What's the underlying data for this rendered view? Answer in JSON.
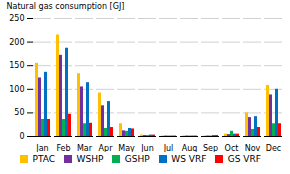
{
  "chart_data": {
    "type": "bar",
    "categories": [
      "Jan",
      "Feb",
      "Mar",
      "Apr",
      "May",
      "Jun",
      "Jul",
      "Aug",
      "Sep",
      "Oct",
      "Nov",
      "Dec"
    ],
    "series": [
      {
        "name": "PTAC",
        "color": "#FFC000",
        "values": [
          155,
          215,
          133,
          92,
          27,
          3,
          1,
          1,
          1,
          5,
          50,
          108
        ]
      },
      {
        "name": "WSHP",
        "color": "#7030A0",
        "values": [
          124,
          172,
          105,
          65,
          12,
          2,
          1,
          1,
          1,
          4,
          40,
          88
        ]
      },
      {
        "name": "GSHP",
        "color": "#00B050",
        "values": [
          36,
          36,
          27,
          17,
          11,
          2,
          1,
          1,
          1,
          11,
          15,
          27
        ]
      },
      {
        "name": "WS VRF",
        "color": "#0070C0",
        "values": [
          136,
          187,
          114,
          74,
          17,
          3,
          1,
          1,
          2,
          5,
          42,
          100
        ]
      },
      {
        "name": "GS VRF",
        "color": "#FF0000",
        "values": [
          36,
          47,
          28,
          19,
          16,
          3,
          1,
          1,
          2,
          5,
          19,
          27
        ]
      }
    ],
    "ylabel": "Natural gas consumption [GJ]",
    "ylim": [
      0,
      250
    ],
    "yticks": [
      0,
      50,
      100,
      150,
      200,
      250
    ],
    "grid": true,
    "legend": "bottom"
  }
}
